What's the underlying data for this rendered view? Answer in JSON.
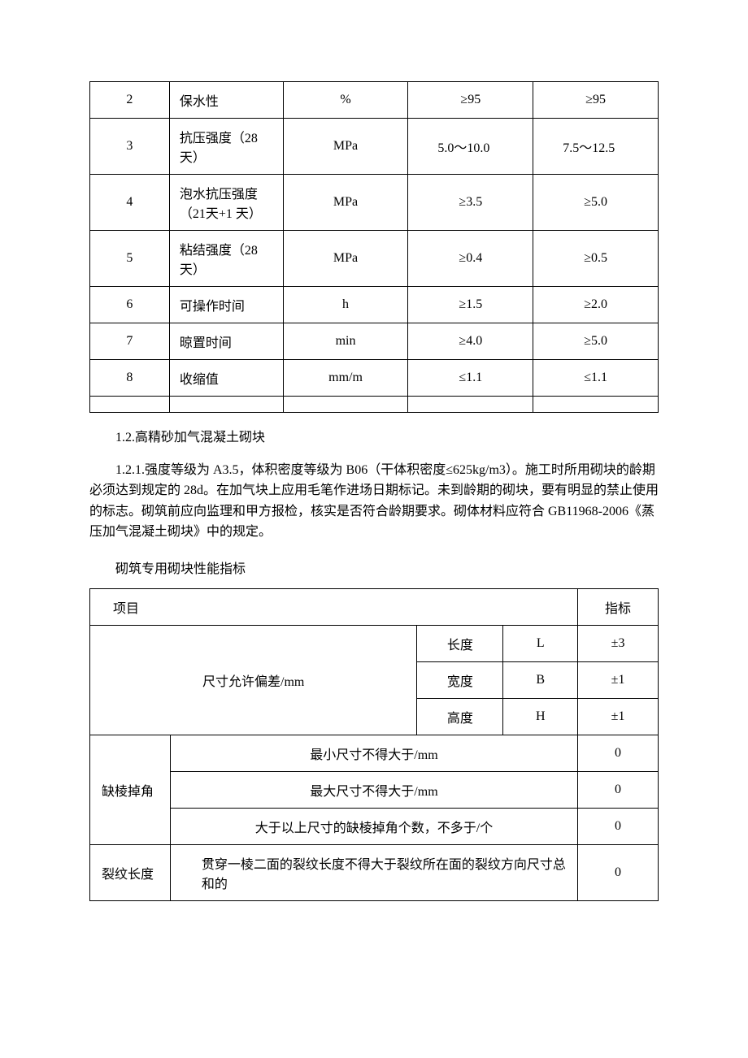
{
  "table1": {
    "rows": [
      {
        "idx": "2",
        "name": "保水性",
        "unit": "%",
        "v1": "≥95",
        "v2": "≥95"
      },
      {
        "idx": "3",
        "name": "抗压强度（28 天）",
        "unit": "MPa",
        "v1": "5.0～10.0",
        "v2": "7.5～12.5"
      },
      {
        "idx": "4",
        "name": "泡水抗压强度（21天+1 天）",
        "unit": "MPa",
        "v1": "≥3.5",
        "v2": "≥5.0"
      },
      {
        "idx": "5",
        "name": "粘结强度（28 天）",
        "unit": "MPa",
        "v1": "≥0.4",
        "v2": "≥0.5"
      },
      {
        "idx": "6",
        "name": "可操作时间",
        "unit": "h",
        "v1": "≥1.5",
        "v2": "≥2.0"
      },
      {
        "idx": "7",
        "name": "晾置时间",
        "unit": "min",
        "v1": "≥4.0",
        "v2": "≥5.0"
      },
      {
        "idx": "8",
        "name": "收缩值",
        "unit": "mm/m",
        "v1": "≤1.1",
        "v2": "≤1.1"
      }
    ]
  },
  "section": {
    "heading": "1.2.高精砂加气混凝土砌块",
    "para": "1.2.1.强度等级为 A3.5，体积密度等级为 B06（干体积密度≤625kg/m3）。施工时所用砌块的龄期必须达到规定的 28d。在加气块上应用毛笔作进场日期标记。未到龄期的砌块，要有明显的禁止使用的标志。砌筑前应向监理和甲方报检，核实是否符合龄期要求。砌体材料应符合 GB11968-2006《蒸压加气混凝土砌块》中的规定。",
    "sub_title": "砌筑专用砌块性能指标"
  },
  "table2": {
    "header": {
      "item": "项目",
      "indicator": "指标"
    },
    "dim": {
      "title": "尺寸允许偏差/mm",
      "rows": [
        {
          "dim_name": "长度",
          "sym": "L",
          "val": "±3"
        },
        {
          "dim_name": "宽度",
          "sym": "B",
          "val": "±1"
        },
        {
          "dim_name": "高度",
          "sym": "H",
          "val": "±1"
        }
      ]
    },
    "defect": {
      "title": "缺棱掉角",
      "rows": [
        {
          "desc": "最小尺寸不得大于/mm",
          "val": "0"
        },
        {
          "desc": "最大尺寸不得大于/mm",
          "val": "0"
        },
        {
          "desc": "大于以上尺寸的缺棱掉角个数，不多于/个",
          "val": "0"
        }
      ]
    },
    "crack": {
      "title": "裂纹长度",
      "desc": "贯穿一棱二面的裂纹长度不得大于裂纹所在面的裂纹方向尺寸总和的",
      "val": "0"
    }
  }
}
